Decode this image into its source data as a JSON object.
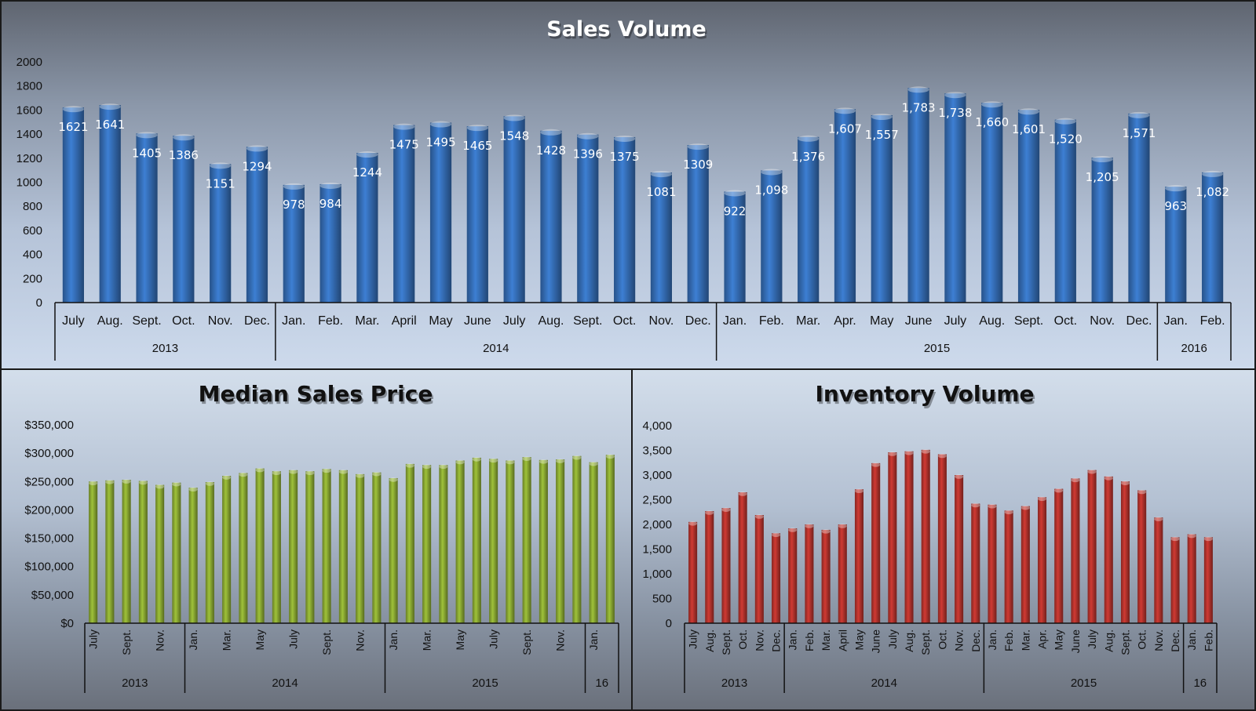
{
  "colors": {
    "sales_bar": "#3d7fd3",
    "price_bar": "#9fc23a",
    "inventory_bar": "#cf3a33"
  },
  "chart_data": [
    {
      "id": "sales",
      "type": "bar",
      "title": "Sales Volume",
      "ylim": [
        0,
        2000
      ],
      "yticks": [
        0,
        200,
        400,
        600,
        800,
        1000,
        1200,
        1400,
        1600,
        1800,
        2000
      ],
      "categories": [
        "July",
        "Aug.",
        "Sept.",
        "Oct.",
        "Nov.",
        "Dec.",
        "Jan.",
        "Feb.",
        "Mar.",
        "April",
        "May",
        "June",
        "July",
        "Aug.",
        "Sept.",
        "Oct.",
        "Nov.",
        "Dec.",
        "Jan.",
        "Feb.",
        "Mar.",
        "Apr.",
        "May",
        "June",
        "July",
        "Aug.",
        "Sept.",
        "Oct.",
        "Nov.",
        "Dec.",
        "Jan.",
        "Feb."
      ],
      "values": [
        1621,
        1641,
        1405,
        1386,
        1151,
        1294,
        978,
        984,
        1244,
        1475,
        1495,
        1465,
        1548,
        1428,
        1396,
        1375,
        1081,
        1309,
        922,
        1098,
        1376,
        1607,
        1557,
        1783,
        1738,
        1660,
        1601,
        1520,
        1205,
        1571,
        963,
        1082
      ],
      "data_labels": [
        "1621",
        "1641",
        "1405",
        "1386",
        "1151",
        "1294",
        "978",
        "984",
        "1244",
        "1475",
        "1495",
        "1465",
        "1548",
        "1428",
        "1396",
        "1375",
        "1081",
        "1309",
        "922",
        "1,098",
        "1,376",
        "1,607",
        "1,557",
        "1,783",
        "1,738",
        "1,660",
        "1,601",
        "1,520",
        "1,205",
        "1,571",
        "963",
        "1,082"
      ],
      "groups": [
        {
          "label": "2013",
          "count": 6
        },
        {
          "label": "2014",
          "count": 12
        },
        {
          "label": "2015",
          "count": 12
        },
        {
          "label": "2016",
          "count": 2
        }
      ],
      "grid": false,
      "legend": "none"
    },
    {
      "id": "price",
      "type": "bar",
      "title": "Median Sales Price",
      "ylim": [
        0,
        350000
      ],
      "yticks": [
        0,
        50000,
        100000,
        150000,
        200000,
        250000,
        300000,
        350000
      ],
      "ytick_labels": [
        "$0",
        "$50,000",
        "$100,000",
        "$150,000",
        "$200,000",
        "$250,000",
        "$300,000",
        "$350,000"
      ],
      "values": [
        250000,
        252000,
        253000,
        251000,
        244000,
        248000,
        239000,
        249000,
        260000,
        265000,
        273000,
        268000,
        270000,
        268000,
        272000,
        270000,
        263000,
        266000,
        256000,
        281000,
        279000,
        279000,
        287000,
        292000,
        290000,
        287000,
        293000,
        288000,
        289000,
        295000,
        284000,
        297000
      ],
      "tick_labels": [
        {
          "index": 0,
          "label": "July"
        },
        {
          "index": 2,
          "label": "Sept."
        },
        {
          "index": 4,
          "label": "Nov."
        },
        {
          "index": 6,
          "label": "Jan."
        },
        {
          "index": 8,
          "label": "Mar."
        },
        {
          "index": 10,
          "label": "May"
        },
        {
          "index": 12,
          "label": "July"
        },
        {
          "index": 14,
          "label": "Sept."
        },
        {
          "index": 16,
          "label": "Nov."
        },
        {
          "index": 18,
          "label": "Jan."
        },
        {
          "index": 20,
          "label": "Mar."
        },
        {
          "index": 22,
          "label": "May"
        },
        {
          "index": 24,
          "label": "July"
        },
        {
          "index": 26,
          "label": "Sept."
        },
        {
          "index": 28,
          "label": "Nov."
        },
        {
          "index": 30,
          "label": "Jan."
        }
      ],
      "groups": [
        {
          "label": "2013",
          "count": 6
        },
        {
          "label": "2014",
          "count": 12
        },
        {
          "label": "2015",
          "count": 12
        },
        {
          "label": "16",
          "count": 2
        }
      ],
      "grid": false,
      "legend": "none"
    },
    {
      "id": "inventory",
      "type": "bar",
      "title": "Inventory Volume",
      "ylim": [
        0,
        4000
      ],
      "yticks": [
        0,
        500,
        1000,
        1500,
        2000,
        2500,
        3000,
        3500,
        4000
      ],
      "ytick_labels": [
        "0",
        "500",
        "1,000",
        "1,500",
        "2,000",
        "2,500",
        "3,000",
        "3,500",
        "4,000"
      ],
      "categories": [
        "July",
        "Aug.",
        "Sept.",
        "Oct.",
        "Nov.",
        "Dec.",
        "Jan.",
        "Feb.",
        "Mar.",
        "April",
        "May",
        "June",
        "July",
        "Aug.",
        "Sept.",
        "Oct.",
        "Nov.",
        "Dec.",
        "Jan.",
        "Feb.",
        "Mar.",
        "Apr.",
        "May",
        "June",
        "July",
        "Aug.",
        "Sept.",
        "Oct.",
        "Nov.",
        "Dec.",
        "Jan.",
        "Feb."
      ],
      "values": [
        2050,
        2270,
        2330,
        2650,
        2190,
        1820,
        1920,
        2000,
        1890,
        2000,
        2710,
        3240,
        3460,
        3480,
        3510,
        3420,
        3000,
        2420,
        2400,
        2280,
        2370,
        2550,
        2720,
        2930,
        3100,
        2970,
        2870,
        2690,
        2140,
        1740,
        1800,
        1740
      ],
      "groups": [
        {
          "label": "2013",
          "count": 6
        },
        {
          "label": "2014",
          "count": 12
        },
        {
          "label": "2015",
          "count": 12
        },
        {
          "label": "16",
          "count": 2
        }
      ],
      "grid": false,
      "legend": "none"
    }
  ]
}
